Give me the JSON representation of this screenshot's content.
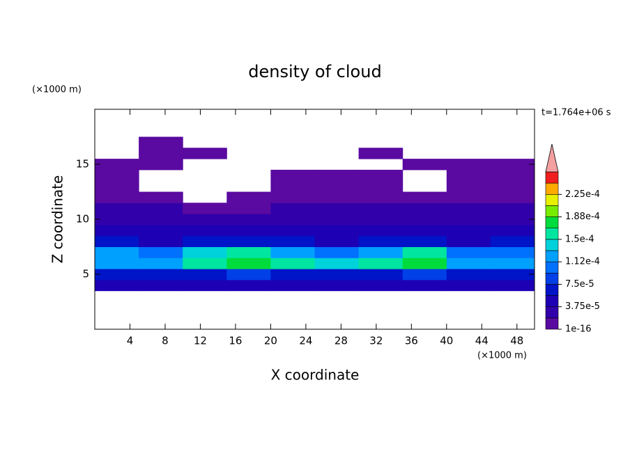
{
  "chart_data": {
    "type": "contour",
    "title": "density of cloud",
    "xlabel": "X coordinate",
    "ylabel": "Z coordinate",
    "x_unit": "(×1000 m)",
    "y_unit": "(×1000 m)",
    "annotation": "t=1.764e+06 s",
    "xlim": [
      0,
      50
    ],
    "ylim": [
      0,
      20
    ],
    "xticks": [
      4,
      8,
      12,
      16,
      20,
      24,
      28,
      32,
      36,
      40,
      44,
      48
    ],
    "yticks": [
      5,
      10,
      15
    ],
    "x": [
      2.5,
      7.5,
      12.5,
      17.5,
      22.5,
      27.5,
      32.5,
      37.5,
      42.5,
      47.5
    ],
    "y": [
      4,
      5,
      6,
      7,
      8,
      9,
      10,
      11,
      12,
      13,
      14,
      15,
      16,
      17
    ],
    "values": [
      [
        4e-05,
        4.2e-05,
        3.9e-05,
        4e-05,
        4.1e-05,
        3.8e-05,
        4e-05,
        4.2e-05,
        3.9e-05,
        4e-05
      ],
      [
        7e-05,
        6.5e-05,
        7e-05,
        7.5e-05,
        7e-05,
        6.5e-05,
        7e-05,
        7.5e-05,
        6e-05,
        7e-05
      ],
      [
        0.00013,
        0.00012,
        0.00015,
        0.00017,
        0.00016,
        0.00014,
        0.00015,
        0.00017,
        0.00012,
        0.00013
      ],
      [
        0.00012,
        0.00011,
        0.00014,
        0.00016,
        0.00013,
        0.0001,
        0.00012,
        0.00015,
        0.0001,
        0.00011
      ],
      [
        6e-05,
        5.5e-05,
        6e-05,
        6.5e-05,
        6e-05,
        5.5e-05,
        6e-05,
        6.5e-05,
        5.5e-05,
        6e-05
      ],
      [
        4e-05,
        4.2e-05,
        3.8e-05,
        4e-05,
        4.5e-05,
        4e-05,
        4.2e-05,
        4e-05,
        3.8e-05,
        4e-05
      ],
      [
        2.5e-05,
        2.8e-05,
        2.2e-05,
        2e-05,
        2.5e-05,
        2.8e-05,
        2.5e-05,
        2.2e-05,
        3e-05,
        2.5e-05
      ],
      [
        2e-05,
        1.9e-05,
        1.5e-05,
        1.5e-05,
        1.9e-05,
        2e-05,
        2e-05,
        1.9e-05,
        2e-05,
        2e-05
      ],
      [
        1.2e-05,
        1e-05,
        null,
        8e-06,
        1e-05,
        1.2e-05,
        1.5e-05,
        1.2e-05,
        1.5e-05,
        1.5e-05
      ],
      [
        8e-06,
        null,
        null,
        null,
        8e-06,
        8e-06,
        1e-05,
        null,
        1e-05,
        1e-05
      ],
      [
        5e-06,
        null,
        null,
        null,
        5e-06,
        5e-06,
        5e-06,
        null,
        8e-06,
        8e-06
      ],
      [
        5e-06,
        3e-06,
        null,
        null,
        null,
        null,
        null,
        3e-06,
        5e-06,
        5e-06
      ],
      [
        null,
        5e-06,
        5e-06,
        null,
        null,
        null,
        5e-06,
        null,
        null,
        null
      ],
      [
        null,
        5e-06,
        null,
        null,
        null,
        null,
        null,
        null,
        null,
        null
      ]
    ],
    "colorbar": {
      "levels": [
        1e-16,
        1.875e-05,
        3.75e-05,
        5.625e-05,
        7.5e-05,
        9.375e-05,
        0.0001125,
        0.00013125,
        0.00015,
        0.00016875,
        0.0001875,
        0.00020625,
        0.000225,
        0.00024375,
        0.0002625
      ],
      "colors": [
        "#5a0aa0",
        "#3200aa",
        "#1e00b4",
        "#0014c8",
        "#0040e6",
        "#0070ff",
        "#00a0ff",
        "#00d2dc",
        "#00e6a0",
        "#00dc3c",
        "#78ec00",
        "#e6f000",
        "#ffaa00",
        "#f01e1e"
      ],
      "extend_color": "#f4a0a0",
      "ticks": [
        1e-16,
        {
          "value": 3.75e-05,
          "label": "3.75e-5"
        },
        {
          "value": 7.5e-05,
          "label": "7.5e-5"
        },
        {
          "value": 0.0001125,
          "label": "1.12e-4"
        },
        {
          "value": 0.00015,
          "label": "1.5e-4"
        },
        {
          "value": 0.0001875,
          "label": "1.88e-4"
        },
        {
          "value": 0.000225,
          "label": "2.25e-4"
        }
      ]
    }
  }
}
